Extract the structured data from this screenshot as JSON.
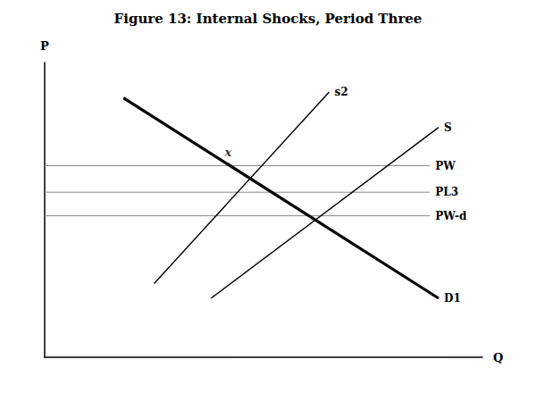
{
  "chart_data": {
    "type": "line",
    "title": "Figure 13: Internal Shocks, Period Three",
    "xlabel": "Q",
    "ylabel": "P",
    "xlim": [
      0,
      10
    ],
    "ylim": [
      0,
      10
    ],
    "tick_labels": false,
    "grid": false,
    "series": [
      {
        "name": "PW",
        "x": [
          0,
          8.8
        ],
        "values": [
          6.5,
          6.5
        ],
        "color": "#888888",
        "line_style": "solid"
      },
      {
        "name": "PW-d",
        "x": [
          0,
          8.8
        ],
        "values": [
          4.8,
          4.8
        ],
        "color": "#888888",
        "line_style": "solid"
      },
      {
        "name": "PL3",
        "x": [
          0,
          8.8
        ],
        "values": [
          5.6,
          5.6
        ],
        "color": "#888888",
        "line_style": "solid"
      },
      {
        "name": "D1",
        "x": [
          1.8,
          9.0
        ],
        "values": [
          8.8,
          2.0
        ],
        "color": "#000000",
        "line_style": "solid"
      },
      {
        "name": "S",
        "x": [
          3.8,
          9.0
        ],
        "values": [
          2.0,
          7.8
        ],
        "color": "#000000",
        "line_style": "solid"
      },
      {
        "name": "s2",
        "x": [
          2.5,
          6.5
        ],
        "values": [
          2.5,
          9.0
        ],
        "color": "#000000",
        "line_style": "solid"
      }
    ],
    "annotations": [
      {
        "text": "x",
        "x": 4.6,
        "y": 6.5
      }
    ]
  }
}
